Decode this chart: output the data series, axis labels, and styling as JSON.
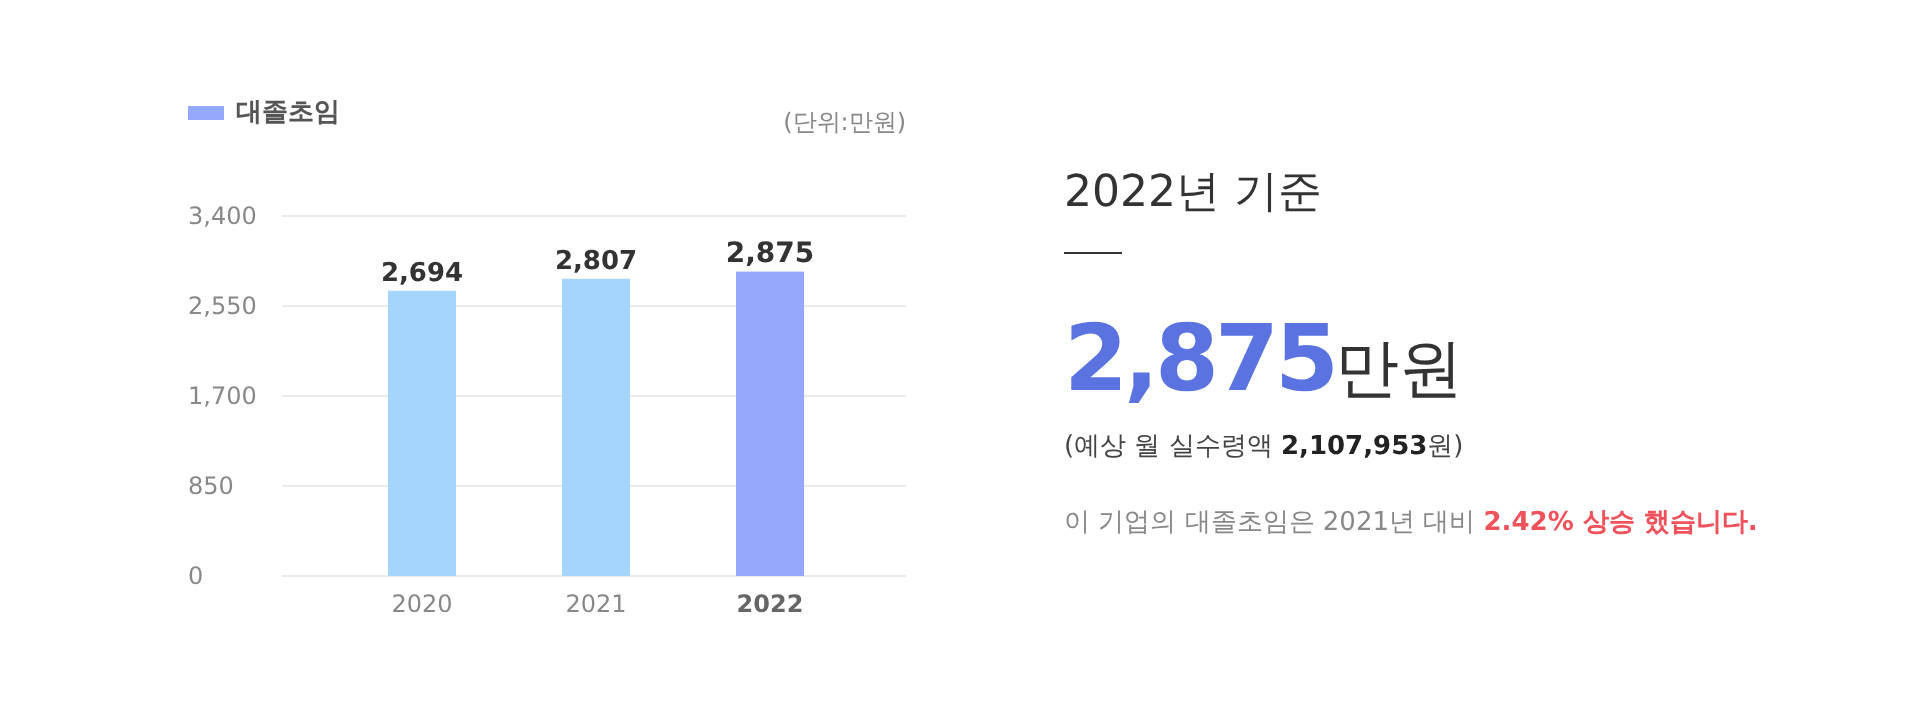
{
  "chart_data": [
    {
      "type": "bar",
      "subtitle": "(단위:만원)",
      "categories": [
        "2020",
        "2021",
        "2022"
      ],
      "series": [
        {
          "name": "대졸초임",
          "color": "#96a8fe",
          "colors": [
            "#a5d4fd",
            "#a5d4fd",
            "#96a8fe"
          ],
          "values": [
            2694,
            2807,
            2875
          ],
          "value_labels": [
            "2,694",
            "2,807",
            "2,875"
          ]
        }
      ],
      "ylim": [
        0,
        3400
      ],
      "yticks": [
        0,
        850,
        {
          "value": 1700,
          "label": "1,700"
        },
        {
          "value": 2550,
          "label": "2,550"
        },
        {
          "value": 3400,
          "label": "3,400"
        }
      ],
      "grid": "y",
      "legend": "top left"
    },
    {
      "type": "other",
      "title": "2022년 기준",
      "annotations": [
        "2,875만원",
        "(예상 월 실수령액 2,107,953원)",
        "이 기업의 대졸초임은 2021년 대비 2.42% 상승 했습니다."
      ]
    }
  ]
}
